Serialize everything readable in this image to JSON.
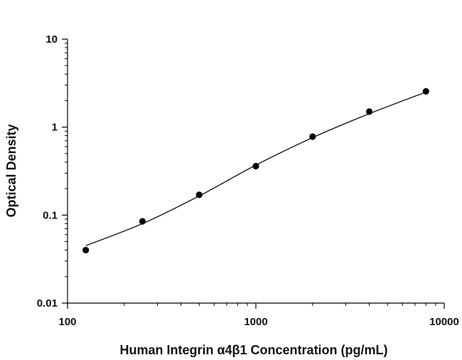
{
  "chart_data": {
    "type": "scatter",
    "title": "",
    "xlabel": "Human Integrin α4β1 Concentration (pg/mL)",
    "ylabel": "Optical Density",
    "x_scale": "log",
    "y_scale": "log",
    "xlim": [
      100,
      10000
    ],
    "ylim": [
      0.01,
      10
    ],
    "x_ticks": [
      "100",
      "1000",
      "10000"
    ],
    "y_ticks": [
      "0.01",
      "0.1",
      "1",
      "10"
    ],
    "grid": false,
    "legend": "none",
    "series": [
      {
        "x": [
          125,
          250,
          500,
          1000,
          2000,
          4000,
          8000
        ],
        "y": [
          0.04,
          0.085,
          0.17,
          0.36,
          0.78,
          1.5,
          2.55
        ]
      }
    ],
    "fit_curve": {
      "x": [
        125,
        250,
        500,
        1000,
        2000,
        4000,
        8000
      ],
      "y": [
        0.045,
        0.08,
        0.165,
        0.37,
        0.76,
        1.42,
        2.5
      ]
    },
    "colors": {
      "marker": "#000000",
      "line": "#000000",
      "axis": "#000000"
    }
  }
}
